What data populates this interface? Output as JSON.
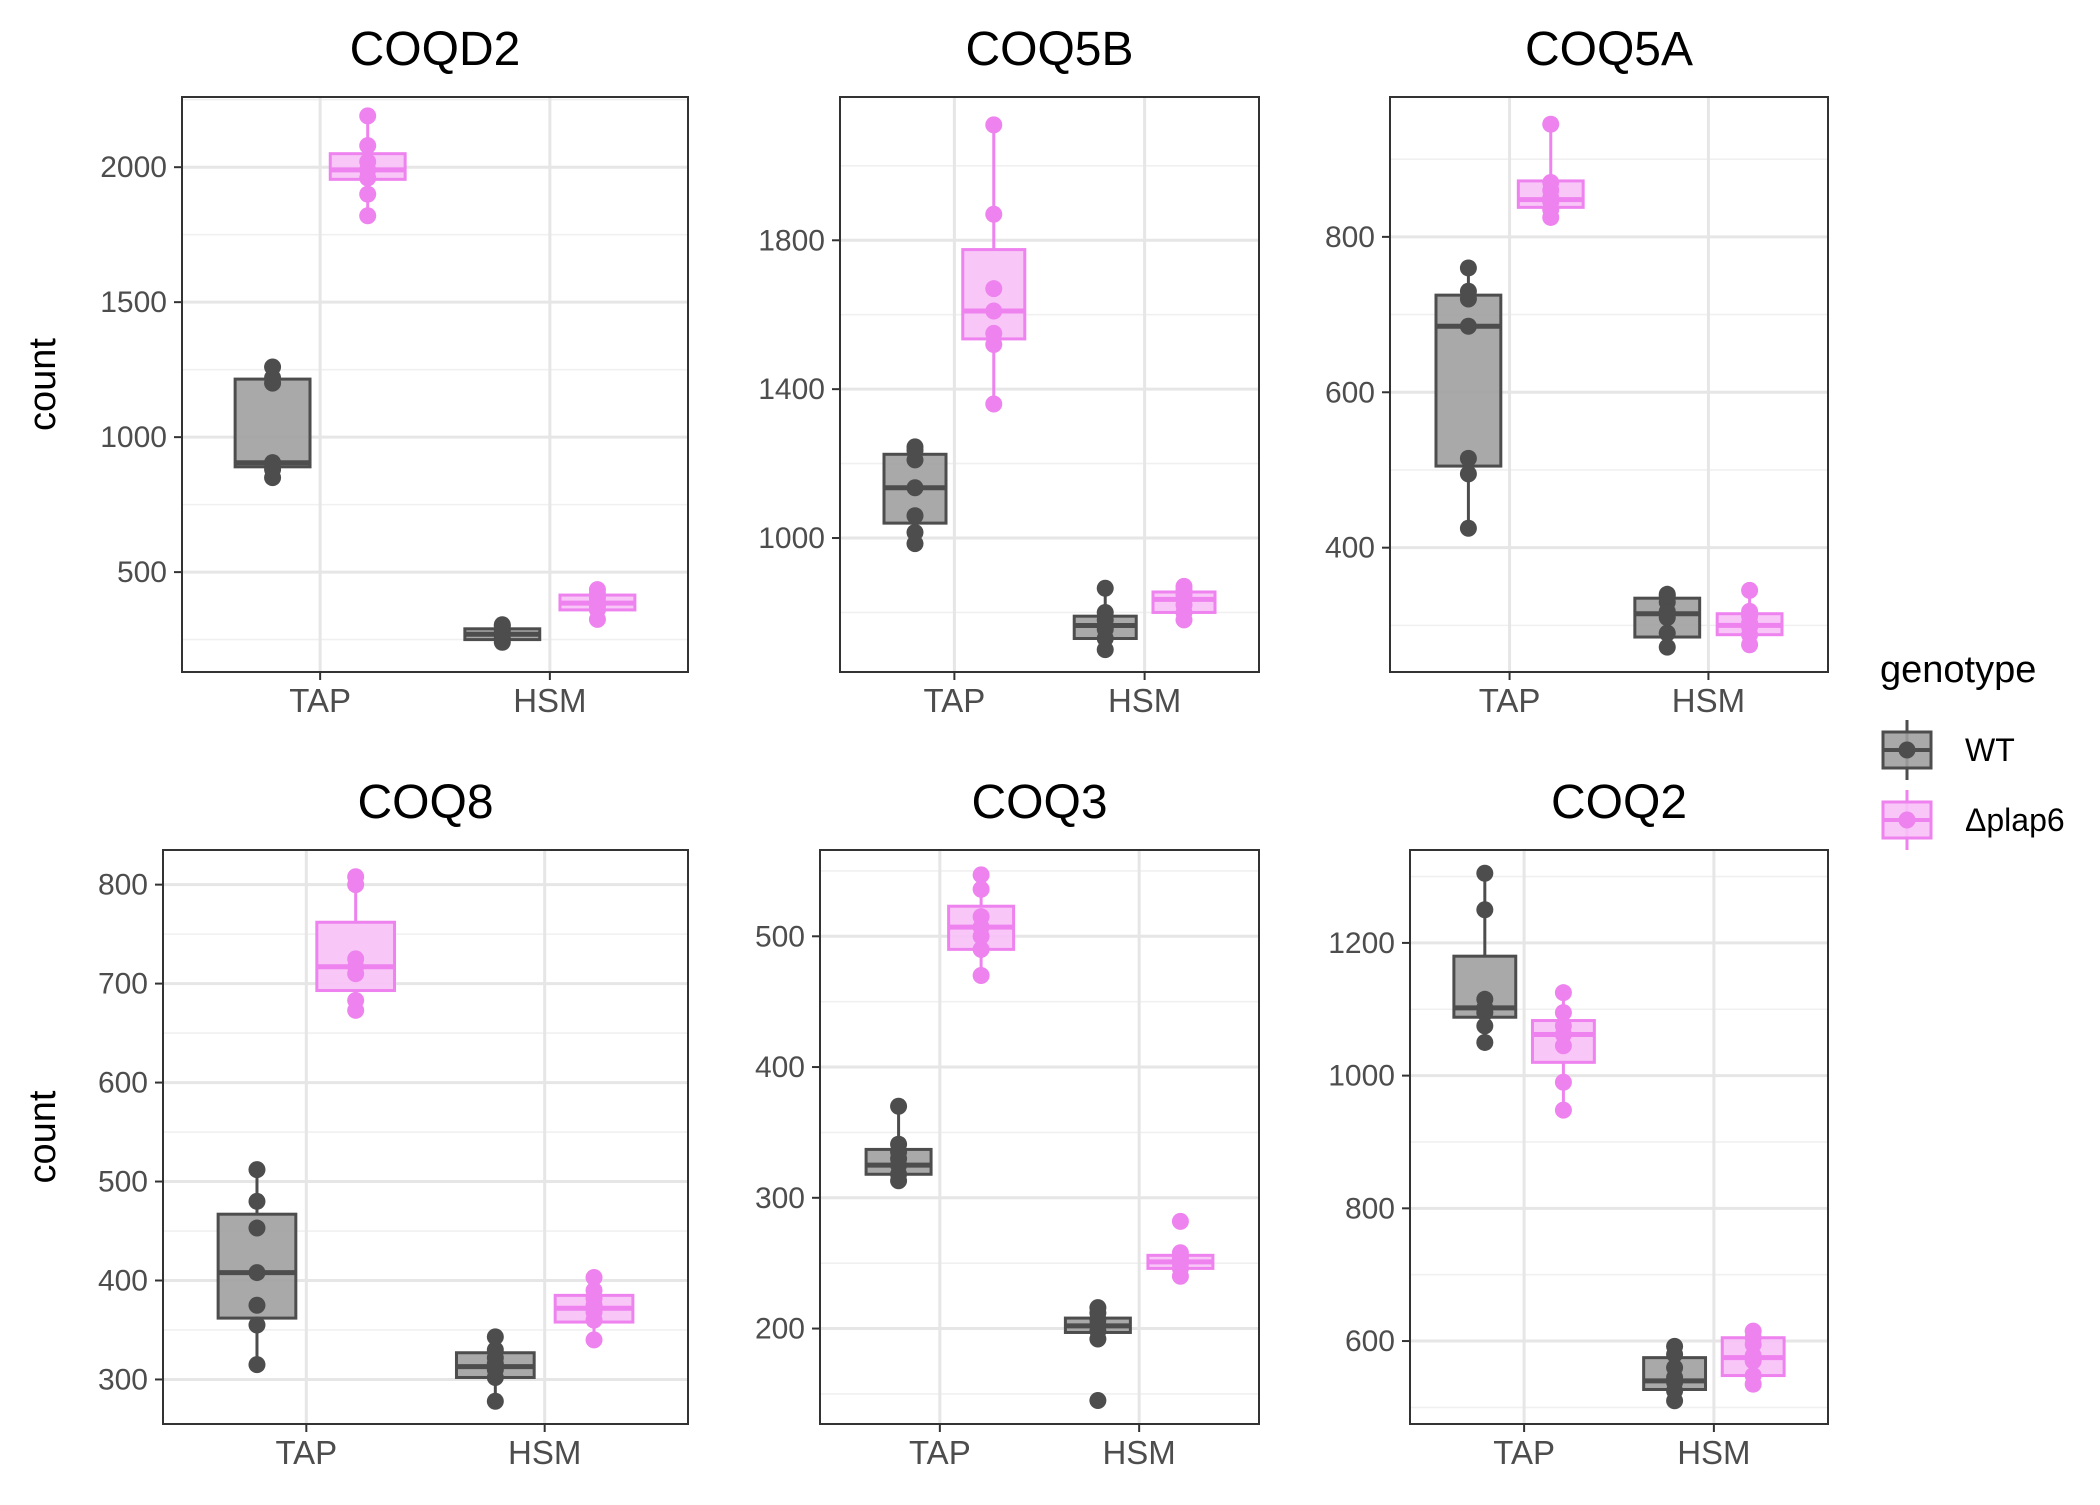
{
  "chart_data": {
    "type": "box",
    "ylabel": "count",
    "legend": {
      "title": "genotype",
      "position": "right",
      "entries": [
        {
          "label": "WT",
          "color": "#4d4d4d",
          "fill": "#a0a0a0"
        },
        {
          "label": "Δplap6",
          "color": "#ee82ee",
          "fill": "#f7c1f7"
        }
      ]
    },
    "grid": true,
    "panels": [
      {
        "title": "COQD2",
        "categories": [
          "TAP",
          "HSM"
        ],
        "ylim": [
          130,
          2260
        ],
        "yticks": [
          500,
          1000,
          1500,
          2000
        ],
        "boxes": [
          {
            "category": "TAP",
            "series": "WT",
            "q1": 890,
            "median": 905,
            "q3": 1215,
            "whisker_low": 850,
            "whisker_high": 1260,
            "points": [
              850,
              880,
              905,
              905,
              1200,
              1220,
              1260
            ]
          },
          {
            "category": "TAP",
            "series": "Δplap6",
            "q1": 1955,
            "median": 1990,
            "q3": 2050,
            "whisker_low": 1820,
            "whisker_high": 2190,
            "points": [
              1820,
              1900,
              1960,
              1990,
              2020,
              2080,
              2190
            ]
          },
          {
            "category": "HSM",
            "series": "WT",
            "q1": 250,
            "median": 270,
            "q3": 290,
            "whisker_low": 240,
            "whisker_high": 305,
            "points": [
              240,
              255,
              268,
              275,
              285,
              300,
              305
            ]
          },
          {
            "category": "HSM",
            "series": "Δplap6",
            "q1": 360,
            "median": 385,
            "q3": 415,
            "whisker_low": 325,
            "whisker_high": 435,
            "points": [
              325,
              360,
              375,
              390,
              405,
              420,
              435
            ]
          }
        ]
      },
      {
        "title": "COQ5B",
        "categories": [
          "TAP",
          "HSM"
        ],
        "ylim": [
          640,
          2185
        ],
        "yticks": [
          1000,
          1400,
          1800
        ],
        "boxes": [
          {
            "category": "TAP",
            "series": "WT",
            "q1": 1040,
            "median": 1135,
            "q3": 1225,
            "whisker_low": 985,
            "whisker_high": 1245,
            "points": [
              985,
              1015,
              1060,
              1135,
              1210,
              1235,
              1245
            ]
          },
          {
            "category": "TAP",
            "series": "Δplap6",
            "q1": 1535,
            "median": 1610,
            "q3": 1775,
            "whisker_low": 1360,
            "whisker_high": 2110,
            "points": [
              1360,
              1520,
              1550,
              1610,
              1670,
              1870,
              2110
            ]
          },
          {
            "category": "HSM",
            "series": "WT",
            "q1": 730,
            "median": 765,
            "q3": 790,
            "whisker_low": 700,
            "whisker_high": 865,
            "points": [
              700,
              730,
              755,
              765,
              780,
              800,
              865
            ]
          },
          {
            "category": "HSM",
            "series": "Δplap6",
            "q1": 800,
            "median": 835,
            "q3": 855,
            "whisker_low": 780,
            "whisker_high": 870,
            "points": [
              780,
              800,
              820,
              835,
              848,
              860,
              870
            ]
          }
        ]
      },
      {
        "title": "COQ5A",
        "categories": [
          "TAP",
          "HSM"
        ],
        "ylim": [
          240,
          980
        ],
        "yticks": [
          400,
          600,
          800
        ],
        "boxes": [
          {
            "category": "TAP",
            "series": "WT",
            "q1": 505,
            "median": 685,
            "q3": 725,
            "whisker_low": 425,
            "whisker_high": 760,
            "points": [
              425,
              495,
              515,
              685,
              720,
              730,
              760
            ]
          },
          {
            "category": "TAP",
            "series": "Δplap6",
            "q1": 838,
            "median": 848,
            "q3": 872,
            "whisker_low": 825,
            "whisker_high": 945,
            "points": [
              825,
              835,
              845,
              850,
              860,
              870,
              945
            ]
          },
          {
            "category": "HSM",
            "series": "WT",
            "q1": 285,
            "median": 315,
            "q3": 335,
            "whisker_low": 272,
            "whisker_high": 340,
            "points": [
              272,
              290,
              310,
              318,
              330,
              338,
              340
            ]
          },
          {
            "category": "HSM",
            "series": "Δplap6",
            "q1": 288,
            "median": 300,
            "q3": 315,
            "whisker_low": 275,
            "whisker_high": 345,
            "points": [
              275,
              288,
              298,
              303,
              312,
              318,
              345
            ]
          }
        ]
      },
      {
        "title": "COQ8",
        "categories": [
          "TAP",
          "HSM"
        ],
        "ylim": [
          255,
          835
        ],
        "yticks": [
          300,
          400,
          500,
          600,
          700,
          800
        ],
        "boxes": [
          {
            "category": "TAP",
            "series": "WT",
            "q1": 362,
            "median": 408,
            "q3": 467,
            "whisker_low": 315,
            "whisker_high": 512,
            "points": [
              315,
              355,
              375,
              408,
              453,
              480,
              512
            ]
          },
          {
            "category": "TAP",
            "series": "Δplap6",
            "q1": 693,
            "median": 717,
            "q3": 762,
            "whisker_low": 673,
            "whisker_high": 808,
            "points": [
              673,
              683,
              710,
              717,
              725,
              800,
              808
            ]
          },
          {
            "category": "HSM",
            "series": "WT",
            "q1": 302,
            "median": 313,
            "q3": 327,
            "whisker_low": 278,
            "whisker_high": 343,
            "points": [
              278,
              302,
              310,
              316,
              322,
              330,
              343
            ]
          },
          {
            "category": "HSM",
            "series": "Δplap6",
            "q1": 358,
            "median": 372,
            "q3": 385,
            "whisker_low": 340,
            "whisker_high": 403,
            "points": [
              340,
              360,
              368,
              375,
              382,
              390,
              403
            ]
          }
        ]
      },
      {
        "title": "COQ3",
        "categories": [
          "TAP",
          "HSM"
        ],
        "ylim": [
          127,
          566
        ],
        "yticks": [
          200,
          300,
          400,
          500
        ],
        "boxes": [
          {
            "category": "TAP",
            "series": "WT",
            "q1": 318,
            "median": 325,
            "q3": 337,
            "whisker_low": 313,
            "whisker_high": 370,
            "points": [
              313,
              318,
              325,
              330,
              335,
              341,
              370
            ]
          },
          {
            "category": "TAP",
            "series": "Δplap6",
            "q1": 490,
            "median": 507,
            "q3": 523,
            "whisker_low": 470,
            "whisker_high": 547,
            "points": [
              470,
              490,
              500,
              507,
              515,
              536,
              547
            ]
          },
          {
            "category": "HSM",
            "series": "WT",
            "q1": 197,
            "median": 202,
            "q3": 208,
            "whisker_low": 192,
            "whisker_high": 216,
            "points": [
              145,
              192,
              198,
              203,
              207,
              212,
              216
            ]
          },
          {
            "category": "HSM",
            "series": "Δplap6",
            "q1": 246,
            "median": 251,
            "q3": 256,
            "whisker_low": 240,
            "whisker_high": 260,
            "points": [
              240,
              246,
              250,
              252,
              255,
              258,
              282
            ]
          }
        ]
      },
      {
        "title": "COQ2",
        "categories": [
          "TAP",
          "HSM"
        ],
        "ylim": [
          475,
          1340
        ],
        "yticks": [
          600,
          800,
          1000,
          1200
        ],
        "boxes": [
          {
            "category": "TAP",
            "series": "WT",
            "q1": 1088,
            "median": 1102,
            "q3": 1180,
            "whisker_low": 1050,
            "whisker_high": 1305,
            "points": [
              1050,
              1075,
              1095,
              1102,
              1115,
              1250,
              1305
            ]
          },
          {
            "category": "TAP",
            "series": "Δplap6",
            "q1": 1020,
            "median": 1062,
            "q3": 1083,
            "whisker_low": 948,
            "whisker_high": 1125,
            "points": [
              948,
              990,
              1045,
              1062,
              1075,
              1095,
              1125
            ]
          },
          {
            "category": "HSM",
            "series": "WT",
            "q1": 527,
            "median": 540,
            "q3": 575,
            "whisker_low": 510,
            "whisker_high": 592,
            "points": [
              510,
              525,
              538,
              545,
              560,
              580,
              592
            ]
          },
          {
            "category": "HSM",
            "series": "Δplap6",
            "q1": 548,
            "median": 575,
            "q3": 605,
            "whisker_low": 535,
            "whisker_high": 615,
            "points": [
              535,
              548,
              570,
              578,
              595,
              605,
              615
            ]
          }
        ]
      }
    ]
  }
}
